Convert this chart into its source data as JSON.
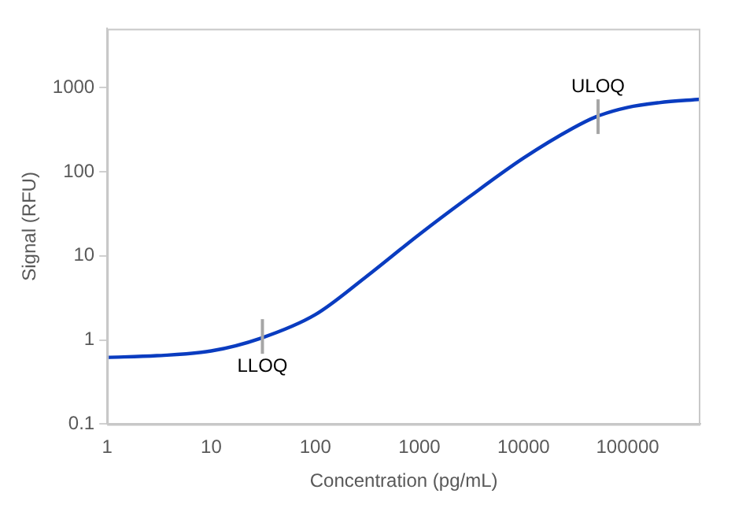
{
  "chart_data": {
    "type": "line",
    "xlabel": "Concentration (pg/mL)",
    "ylabel": "Signal (RFU)",
    "log": "xy",
    "grid": false,
    "legend": false,
    "marker": "none",
    "line_style": "solid",
    "xlim": [
      1,
      500000
    ],
    "xticks": [
      1,
      10,
      100,
      1000,
      10000,
      100000
    ],
    "ylim": [
      0.1,
      5000
    ],
    "yticks": [
      0.1,
      1,
      10,
      100,
      1000
    ],
    "x": [
      1,
      3,
      10,
      30,
      100,
      300,
      1000,
      3000,
      10000,
      30000,
      50000,
      100000,
      200000,
      500000
    ],
    "series": [
      {
        "color": "#0a3cc0",
        "values": [
          0.62,
          0.65,
          0.74,
          1.05,
          2.0,
          5.5,
          18,
          50,
          145,
          330,
          450,
          580,
          660,
          725
        ]
      }
    ],
    "annotations": [
      {
        "text": "LLOQ",
        "x": 31,
        "y": 1.1
      },
      {
        "text": "ULOQ",
        "x": 52000,
        "y": 450
      }
    ]
  }
}
